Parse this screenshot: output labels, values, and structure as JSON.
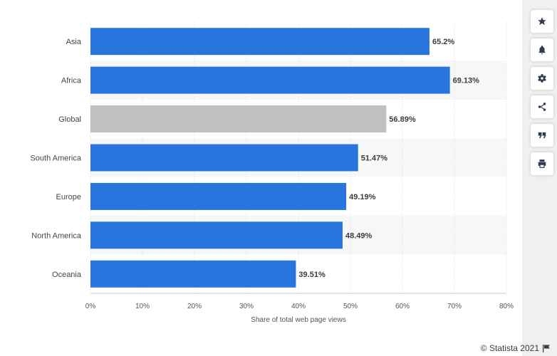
{
  "chart_data": {
    "type": "bar",
    "orientation": "horizontal",
    "categories": [
      "Asia",
      "Africa",
      "Global",
      "South America",
      "Europe",
      "North America",
      "Oceania"
    ],
    "values": [
      65.2,
      69.13,
      56.89,
      51.47,
      49.19,
      48.49,
      39.51
    ],
    "value_labels": [
      "65.2%",
      "69.13%",
      "56.89%",
      "51.47%",
      "49.19%",
      "48.49%",
      "39.51%"
    ],
    "highlight": "Global",
    "xlabel": "Share of total web page views",
    "ylabel": "",
    "xlim": [
      0,
      80
    ],
    "xticks": [
      0,
      10,
      20,
      30,
      40,
      50,
      60,
      70,
      80
    ],
    "xtick_labels": [
      "0%",
      "10%",
      "20%",
      "30%",
      "40%",
      "50%",
      "60%",
      "70%",
      "80%"
    ],
    "grid": true,
    "colors": {
      "bar": "#2876dd",
      "highlight": "#c0c0c0",
      "stripe": "#f7f7f7",
      "label": "#3d3d3d"
    }
  },
  "toolbar": [
    {
      "name": "favorite-button",
      "icon": "star-icon"
    },
    {
      "name": "notification-button",
      "icon": "bell-icon"
    },
    {
      "name": "settings-button",
      "icon": "gear-icon"
    },
    {
      "name": "share-button",
      "icon": "share-icon"
    },
    {
      "name": "cite-button",
      "icon": "quote-icon"
    },
    {
      "name": "print-button",
      "icon": "print-icon"
    }
  ],
  "credit": {
    "text": "© Statista 2021"
  }
}
